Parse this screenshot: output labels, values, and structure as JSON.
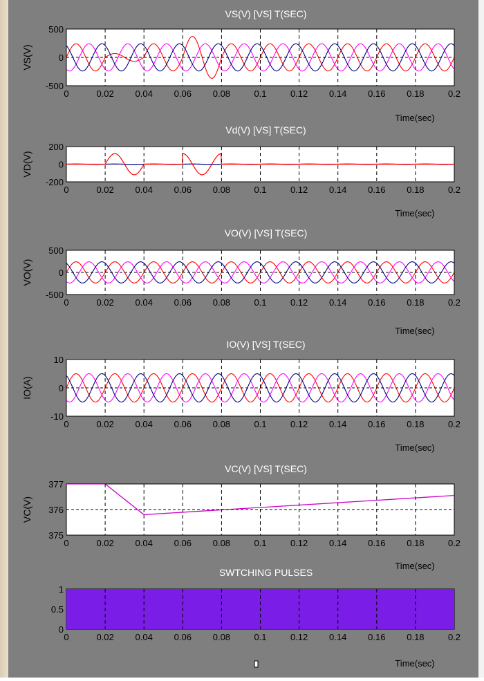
{
  "chart_data": [
    {
      "type": "line",
      "title": "VS(V) [VS] T(SEC)",
      "ylabel": "VS(V)",
      "xlabel": "Time(sec)",
      "xlim": [
        0,
        0.2
      ],
      "ylim": [
        -500,
        500
      ],
      "x_ticks": [
        "0",
        "0.02",
        "0.04",
        "0.06",
        "0.08",
        "0.1",
        "0.12",
        "0.14",
        "0.16",
        "0.18",
        "0.2"
      ],
      "y_ticks": [
        "500",
        "0",
        "-500"
      ],
      "grid": "vertical dashed lines, dashed zero line",
      "waveform": "three-phase sinusoids, 50 Hz, amplitude ~240, red phase distorted between 0.02-0.04 and 0.06-0.08",
      "series": [
        {
          "color": "#ff0000",
          "amplitude": 240,
          "phase_deg": 0
        },
        {
          "color": "#ff00ff",
          "amplitude": 240,
          "phase_deg": -120
        },
        {
          "color": "#000080",
          "amplitude": 240,
          "phase_deg": 120
        }
      ]
    },
    {
      "type": "line",
      "title": "Vd(V) [VS] T(SEC)",
      "ylabel": "VD(V)",
      "xlabel": "Time(sec)",
      "xlim": [
        0,
        0.2
      ],
      "ylim": [
        -200,
        200
      ],
      "x_ticks": [
        "0",
        "0.02",
        "0.04",
        "0.06",
        "0.08",
        "0.1",
        "0.12",
        "0.14",
        "0.16",
        "0.18",
        "0.2"
      ],
      "y_ticks": [
        "200",
        "0",
        "-200"
      ],
      "grid": "vertical dashed lines",
      "waveform": "near zero except one sinusoidal cycle (~120 V peak) during 0.02-0.04 and 0.06-0.08"
    },
    {
      "type": "line",
      "title": "VO(V) [VS] T(SEC)",
      "ylabel": "VO(V)",
      "xlabel": "Time(sec)",
      "xlim": [
        0,
        0.2
      ],
      "ylim": [
        -500,
        500
      ],
      "x_ticks": [
        "0",
        "0.02",
        "0.04",
        "0.06",
        "0.08",
        "0.1",
        "0.12",
        "0.14",
        "0.16",
        "0.18",
        "0.2"
      ],
      "y_ticks": [
        "500",
        "0",
        "-500"
      ],
      "grid": "vertical dashed lines, dashed zero line",
      "waveform": "balanced three-phase sinusoids, 50 Hz, amplitude ~240",
      "series": [
        {
          "color": "#ff0000",
          "amplitude": 240,
          "phase_deg": 0
        },
        {
          "color": "#ff00ff",
          "amplitude": 240,
          "phase_deg": -120
        },
        {
          "color": "#000080",
          "amplitude": 240,
          "phase_deg": 120
        }
      ]
    },
    {
      "type": "line",
      "title": "IO(V) [VS] T(SEC)",
      "ylabel": "IO(A)",
      "xlabel": "Time(sec)",
      "xlim": [
        0,
        0.2
      ],
      "ylim": [
        -10,
        10
      ],
      "x_ticks": [
        "0",
        "0.02",
        "0.04",
        "0.06",
        "0.08",
        "0.1",
        "0.12",
        "0.14",
        "0.16",
        "0.18",
        "0.2"
      ],
      "y_ticks": [
        "10",
        "0",
        "-10"
      ],
      "grid": "vertical dashed lines, dashed zero line",
      "waveform": "balanced three-phase sinusoids, 50 Hz, amplitude ~5",
      "series": [
        {
          "color": "#ff0000",
          "amplitude": 5,
          "phase_deg": 0
        },
        {
          "color": "#ff00ff",
          "amplitude": 5,
          "phase_deg": -120
        },
        {
          "color": "#000080",
          "amplitude": 5,
          "phase_deg": 120
        }
      ]
    },
    {
      "type": "line",
      "title": "VC(V) [VS] T(SEC)",
      "ylabel": "VC(V)",
      "xlabel": "Time(sec)",
      "xlim": [
        0,
        0.2
      ],
      "ylim": [
        375,
        377
      ],
      "x_ticks": [
        "0",
        "0.02",
        "0.04",
        "0.06",
        "0.08",
        "0.1",
        "0.12",
        "0.14",
        "0.16",
        "0.18",
        "0.2"
      ],
      "y_ticks": [
        "377",
        "376",
        "375"
      ],
      "grid": "vertical dashed lines, dashed line at 376",
      "series": [
        {
          "color": "#cc00cc",
          "x": [
            0,
            0.02,
            0.04,
            0.2
          ],
          "y": [
            377,
            377,
            375.8,
            376.55
          ]
        }
      ]
    },
    {
      "type": "area",
      "title": "SWTCHING PULSES",
      "xlabel": "Time(sec)",
      "xlim": [
        0,
        0.2
      ],
      "ylim": [
        0,
        1
      ],
      "x_ticks": [
        "0",
        "0.02",
        "0.04",
        "0.06",
        "0.08",
        "0.1",
        "0.12",
        "0.14",
        "0.16",
        "0.18",
        "0.2"
      ],
      "y_ticks": [
        "1",
        "0.5",
        "0"
      ],
      "fill_color": "#7a1de6",
      "series": [
        {
          "x": [
            0,
            0.2
          ],
          "y": [
            1,
            1
          ]
        }
      ]
    }
  ]
}
